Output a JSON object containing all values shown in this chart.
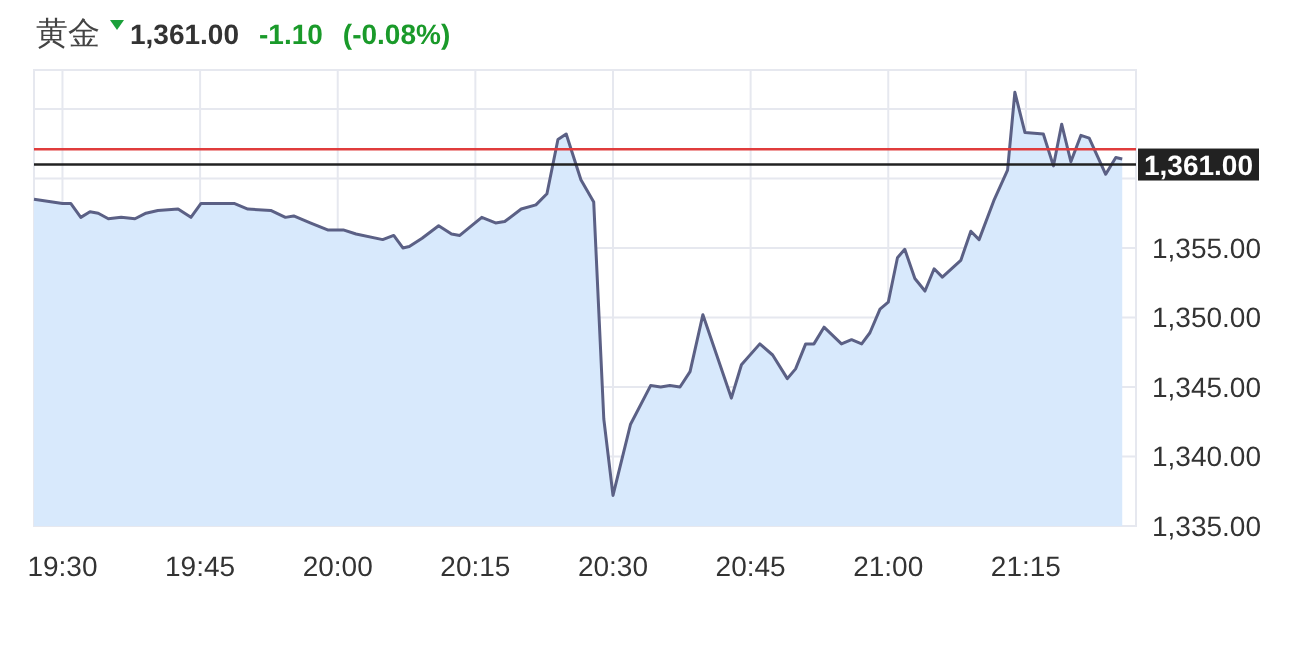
{
  "chart_data": {
    "type": "area",
    "title": "黄金",
    "annotations": [
      "1,361.00",
      "-1.10",
      "(-0.08%)"
    ],
    "series": [
      {
        "color": "#5b6085",
        "x": [
          19.4483,
          19.5,
          19.515,
          19.5333,
          19.55,
          19.565,
          19.5833,
          19.6067,
          19.6317,
          19.6517,
          19.6733,
          19.71,
          19.7333,
          19.7517,
          19.8117,
          19.8367,
          19.8783,
          19.905,
          19.92,
          19.95,
          19.9817,
          20.01,
          20.0333,
          20.0817,
          20.1017,
          20.1183,
          20.13,
          20.1533,
          20.1833,
          20.2067,
          20.2217,
          20.2433,
          20.2617,
          20.2867,
          20.3033,
          20.3333,
          20.36,
          20.38,
          20.4,
          20.415,
          20.4417,
          20.465,
          20.4833,
          20.5,
          20.5317,
          20.5683,
          20.5867,
          20.6033,
          20.6217,
          20.64,
          20.6633,
          20.6883,
          20.715,
          20.7333,
          20.7667,
          20.79,
          20.8167,
          20.8317,
          20.85,
          20.865,
          20.8833,
          20.915,
          20.9333,
          20.9517,
          20.9667,
          20.985,
          21.0,
          21.0167,
          21.03,
          21.0483,
          21.0667,
          21.0833,
          21.0983,
          21.1317,
          21.15,
          21.165,
          21.1917,
          21.2167,
          21.23,
          21.2483,
          21.2817,
          21.3,
          21.315,
          21.3317,
          21.35,
          21.365,
          21.395,
          21.4133,
          21.425
        ],
        "values": [
          1358.5,
          1358.2,
          1358.2,
          1357.2,
          1357.6,
          1357.5,
          1357.1,
          1357.2,
          1357.1,
          1357.5,
          1357.7,
          1357.8,
          1357.2,
          1358.2,
          1358.2,
          1357.8,
          1357.7,
          1357.2,
          1357.3,
          1356.8,
          1356.3,
          1356.3,
          1356.0,
          1355.6,
          1355.9,
          1355.0,
          1355.1,
          1355.7,
          1356.6,
          1356.0,
          1355.9,
          1356.6,
          1357.2,
          1356.8,
          1356.9,
          1357.8,
          1358.1,
          1358.9,
          1362.8,
          1363.2,
          1359.9,
          1358.3,
          1342.7,
          1337.2,
          1342.3,
          1345.1,
          1345.0,
          1345.1,
          1345.0,
          1346.1,
          1350.2,
          1347.3,
          1344.2,
          1346.6,
          1348.1,
          1347.3,
          1345.6,
          1346.3,
          1348.1,
          1348.1,
          1349.3,
          1348.1,
          1348.4,
          1348.1,
          1348.9,
          1350.6,
          1351.1,
          1354.3,
          1354.9,
          1352.8,
          1351.9,
          1353.5,
          1352.9,
          1354.1,
          1356.2,
          1355.6,
          1358.4,
          1360.6,
          1366.2,
          1363.3,
          1363.2,
          1360.9,
          1363.9,
          1361.2,
          1363.1,
          1362.9,
          1360.3,
          1361.5,
          1361.4
        ]
      }
    ],
    "xlim": [
      19.4483,
      21.45
    ],
    "xticks": [
      {
        "value": 19.5,
        "label": "19:30"
      },
      {
        "value": 19.75,
        "label": "19:45"
      },
      {
        "value": 20.0,
        "label": "20:00"
      },
      {
        "value": 20.25,
        "label": "20:15"
      },
      {
        "value": 20.5,
        "label": "20:30"
      },
      {
        "value": 20.75,
        "label": "20:45"
      },
      {
        "value": 21.0,
        "label": "21:00"
      },
      {
        "value": 21.25,
        "label": "21:15"
      }
    ],
    "ylim": [
      1335,
      1367.8
    ],
    "yticks": [
      {
        "value": 1335,
        "label": "1,335.00"
      },
      {
        "value": 1340,
        "label": "1,340.00"
      },
      {
        "value": 1345,
        "label": "1,345.00"
      },
      {
        "value": 1350,
        "label": "1,350.00"
      },
      {
        "value": 1355,
        "label": "1,355.00"
      },
      {
        "value": 1360,
        "label": null
      },
      {
        "value": 1365,
        "label": null
      }
    ],
    "grid": true,
    "ref_lines": [
      {
        "axis": "y",
        "value": 1362.1,
        "label": null,
        "color": "#e03c3c"
      },
      {
        "axis": "y",
        "value": 1361,
        "label": "1,361.00",
        "color": "#222222"
      }
    ]
  }
}
